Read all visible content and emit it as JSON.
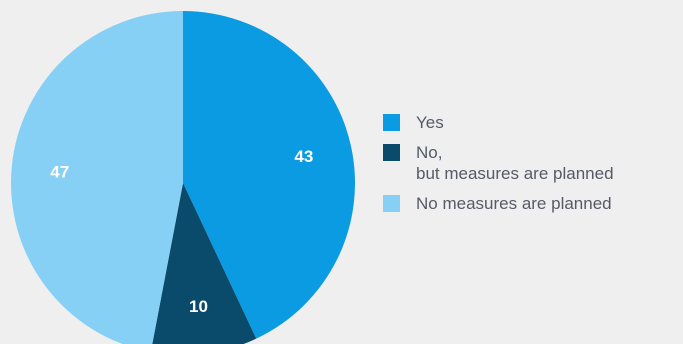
{
  "colors": {
    "background": "#efefef",
    "yes": "#0a9be2",
    "no_planned": "#0a4a6b",
    "no_measures": "#86d0f5"
  },
  "chart_data": {
    "type": "pie",
    "title": "",
    "slices": [
      {
        "label": "Yes",
        "value": 43,
        "value_label": "43",
        "color": "#0a9be2"
      },
      {
        "label": "No,\nbut measures are planned",
        "value": 10,
        "value_label": "10",
        "color": "#0a4a6b"
      },
      {
        "label": "No measures are planned",
        "value": 47,
        "value_label": "47",
        "color": "#86d0f5"
      }
    ],
    "start_angle": "12 o'clock",
    "direction": "clockwise",
    "legend_position": "right"
  }
}
